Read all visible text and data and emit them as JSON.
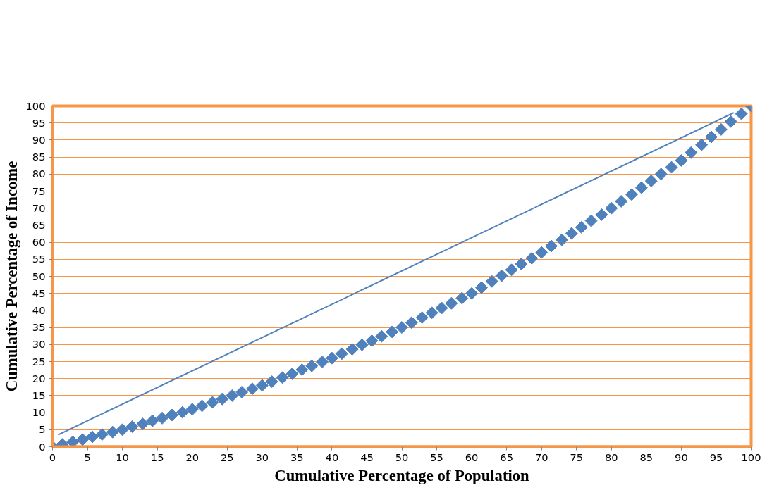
{
  "chart_data": {
    "type": "scatter",
    "xlabel": "Cumulative Percentage of Population",
    "ylabel": "Cumulative Percentage of Income",
    "xlim": [
      0,
      100
    ],
    "ylim": [
      0,
      100
    ],
    "xticks": [
      0,
      5,
      10,
      15,
      20,
      25,
      30,
      35,
      40,
      45,
      50,
      55,
      60,
      65,
      70,
      75,
      80,
      85,
      90,
      95,
      100
    ],
    "yticks": [
      0,
      5,
      10,
      15,
      20,
      25,
      30,
      35,
      40,
      45,
      50,
      55,
      60,
      65,
      70,
      75,
      80,
      85,
      90,
      95,
      100
    ],
    "grid": "y",
    "marker": "diamond",
    "series": [
      {
        "color": "#4f81bd",
        "x": [
          0,
          1.4,
          2.9,
          4.3,
          5.7,
          7.1,
          8.6,
          10.0,
          11.4,
          12.9,
          14.3,
          15.7,
          17.1,
          18.6,
          20.0,
          21.4,
          22.9,
          24.3,
          25.7,
          27.1,
          28.6,
          30.0,
          31.4,
          32.9,
          34.3,
          35.7,
          37.1,
          38.6,
          40.0,
          41.4,
          42.9,
          44.3,
          45.7,
          47.1,
          48.6,
          50.0,
          51.4,
          52.9,
          54.3,
          55.7,
          57.1,
          58.6,
          60.0,
          61.4,
          62.9,
          64.3,
          65.7,
          67.1,
          68.6,
          70.0,
          71.4,
          72.9,
          74.3,
          75.7,
          77.1,
          78.6,
          80.0,
          81.4,
          82.9,
          84.3,
          85.7,
          87.1,
          88.6,
          90.0,
          91.4,
          92.9,
          94.3,
          95.7,
          97.1,
          98.6,
          100
        ],
        "values": [
          0,
          0.7,
          1.4,
          2.1,
          2.9,
          3.6,
          4.3,
          5.0,
          5.9,
          6.7,
          7.6,
          8.4,
          9.3,
          10.1,
          11.0,
          12.0,
          13.0,
          14.0,
          15.0,
          16.0,
          17.0,
          18.0,
          19.1,
          20.3,
          21.4,
          22.6,
          23.7,
          24.9,
          26.0,
          27.3,
          28.6,
          29.9,
          31.1,
          32.4,
          33.7,
          35.0,
          36.4,
          37.9,
          39.3,
          40.7,
          42.1,
          43.6,
          45.0,
          46.7,
          48.5,
          50.2,
          51.9,
          53.6,
          55.3,
          57.0,
          58.9,
          60.7,
          62.6,
          64.4,
          66.3,
          68.1,
          70.0,
          72.0,
          74.0,
          76.0,
          78.0,
          80.0,
          82.0,
          84.0,
          86.3,
          88.6,
          90.9,
          93.1,
          95.4,
          97.7,
          100
        ]
      },
      {
        "type": "line",
        "color": "#4f81bd",
        "marker": "none",
        "x": [
          0.8,
          97.5
        ],
        "values": [
          3.5,
          98
        ]
      }
    ]
  }
}
